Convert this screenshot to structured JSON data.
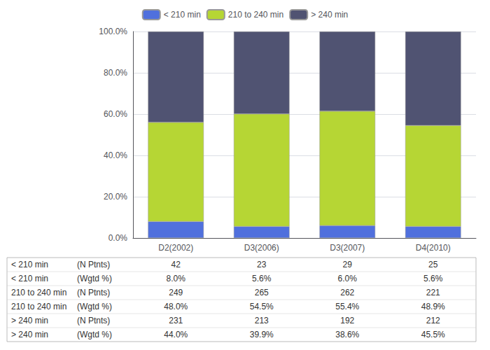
{
  "chart_data": {
    "type": "bar",
    "stacked": true,
    "categories": [
      "D2(2002)",
      "D3(2006)",
      "D3(2007)",
      "D4(2010)"
    ],
    "series": [
      {
        "name": "< 210 min",
        "values": [
          8.0,
          5.6,
          6.0,
          5.6
        ]
      },
      {
        "name": "210 to 240 min",
        "values": [
          48.0,
          54.5,
          55.4,
          48.9
        ]
      },
      {
        "name": "> 240 min",
        "values": [
          44.0,
          39.9,
          38.6,
          45.5
        ]
      }
    ],
    "ylim": [
      0,
      100
    ],
    "yticks": [
      {
        "value": 0,
        "label": "0.0%"
      },
      {
        "value": 20,
        "label": "20.0%"
      },
      {
        "value": 40,
        "label": "40.0%"
      },
      {
        "value": 60,
        "label": "60.0%"
      },
      {
        "value": 80,
        "label": "80.0%"
      },
      {
        "value": 100,
        "label": "100.0%"
      }
    ],
    "grid": true,
    "legend": "top",
    "table": [
      {
        "group": "< 210 min",
        "stat": "(N Ptnts)",
        "values": [
          42,
          23,
          29,
          25
        ]
      },
      {
        "group": "< 210 min",
        "stat": "(Wgtd %)",
        "values": [
          8.0,
          5.6,
          6.0,
          5.6
        ],
        "value_labels": [
          "8.0%",
          "5.6%",
          "6.0%",
          "5.6%"
        ]
      },
      {
        "group": "210 to 240 min",
        "stat": "(N Ptnts)",
        "values": [
          249,
          265,
          262,
          221
        ]
      },
      {
        "group": "210 to 240 min",
        "stat": "(Wgtd %)",
        "values": [
          48.0,
          54.5,
          55.4,
          48.9
        ],
        "value_labels": [
          "48.0%",
          "54.5%",
          "55.4%",
          "48.9%"
        ]
      },
      {
        "group": "> 240 min",
        "stat": "(N Ptnts)",
        "values": [
          231,
          213,
          192,
          212
        ]
      },
      {
        "group": "> 240 min",
        "stat": "(Wgtd %)",
        "values": [
          44.0,
          39.9,
          38.6,
          45.5
        ],
        "value_labels": [
          "44.0%",
          "39.9%",
          "38.6%",
          "45.5%"
        ]
      }
    ]
  }
}
